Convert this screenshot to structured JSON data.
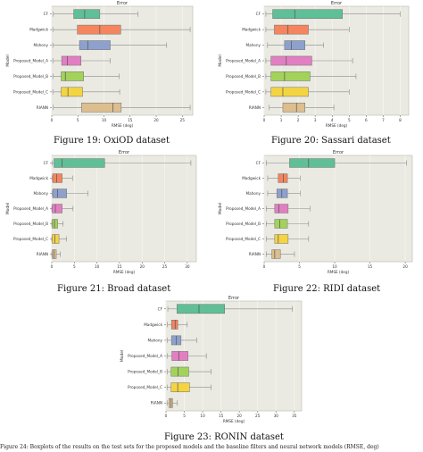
{
  "categories": [
    "CF",
    "Madgwick",
    "Mahony",
    "Proposed_Model_A",
    "Proposed_Model_B",
    "Proposed_Model_C",
    "RIANN"
  ],
  "colors": [
    "#5fbf96",
    "#f4855e",
    "#8ea0cc",
    "#e27fc3",
    "#a3d25a",
    "#f5d442",
    "#ddbe8e"
  ],
  "chart_data": [
    {
      "type": "box",
      "title": "Error",
      "xlabel": "RMSE (deg)",
      "ylabel": "Model",
      "xlim": [
        0,
        27
      ],
      "xticks": [
        0,
        5,
        10,
        15,
        20,
        25
      ],
      "series": [
        {
          "q1": 4.2,
          "median": 6.3,
          "q3": 9.2,
          "whisker_low": 0.3,
          "whisker_high": 16.5
        },
        {
          "q1": 4.9,
          "median": 9.2,
          "q3": 13.2,
          "whisker_low": 0.2,
          "whisker_high": 26.5
        },
        {
          "q1": 5.3,
          "median": 6.9,
          "q3": 11.2,
          "whisker_low": 0.2,
          "whisker_high": 22.0
        },
        {
          "q1": 1.9,
          "median": 3.0,
          "q3": 5.6,
          "whisker_low": 0.2,
          "whisker_high": 11.2
        },
        {
          "q1": 1.8,
          "median": 2.6,
          "q3": 6.1,
          "whisker_low": 0.2,
          "whisker_high": 12.9
        },
        {
          "q1": 1.8,
          "median": 3.1,
          "q3": 5.9,
          "whisker_low": 0.2,
          "whisker_high": 13.0
        },
        {
          "q1": 5.7,
          "median": 11.7,
          "q3": 13.3,
          "whisker_low": 0.3,
          "whisker_high": 26.5
        }
      ]
    },
    {
      "type": "box",
      "title": "Error",
      "xlabel": "RMSE (deg)",
      "ylabel": "Model",
      "xlim": [
        0,
        8.5
      ],
      "xticks": [
        0,
        1,
        2,
        3,
        4,
        5,
        6,
        7,
        8
      ],
      "series": [
        {
          "q1": 0.5,
          "median": 1.8,
          "q3": 4.6,
          "whisker_low": 0.1,
          "whisker_high": 8.0
        },
        {
          "q1": 0.6,
          "median": 1.4,
          "q3": 2.6,
          "whisker_low": 0.1,
          "whisker_high": 5.0
        },
        {
          "q1": 1.2,
          "median": 1.6,
          "q3": 2.4,
          "whisker_low": 0.2,
          "whisker_high": 3.5
        },
        {
          "q1": 0.4,
          "median": 1.3,
          "q3": 2.8,
          "whisker_low": 0.1,
          "whisker_high": 5.2
        },
        {
          "q1": 0.4,
          "median": 1.2,
          "q3": 2.7,
          "whisker_low": 0.1,
          "whisker_high": 5.4
        },
        {
          "q1": 0.4,
          "median": 1.1,
          "q3": 2.6,
          "whisker_low": 0.1,
          "whisker_high": 5.0
        },
        {
          "q1": 1.1,
          "median": 1.9,
          "q3": 2.4,
          "whisker_low": 0.3,
          "whisker_high": 4.1
        }
      ]
    },
    {
      "type": "box",
      "title": "Error",
      "xlabel": "RMSE (deg)",
      "ylabel": "Model",
      "xlim": [
        0,
        32
      ],
      "xticks": [
        0,
        5,
        10,
        15,
        20,
        25,
        30
      ],
      "series": [
        {
          "q1": 0.5,
          "median": 2.3,
          "q3": 11.7,
          "whisker_low": 0.1,
          "whisker_high": 30.8
        },
        {
          "q1": 0.2,
          "median": 1.1,
          "q3": 2.3,
          "whisker_low": 0.1,
          "whisker_high": 4.6
        },
        {
          "q1": 0.2,
          "median": 1.3,
          "q3": 3.3,
          "whisker_low": 0.1,
          "whisker_high": 8.0
        },
        {
          "q1": 0.1,
          "median": 0.8,
          "q3": 2.3,
          "whisker_low": 0.0,
          "whisker_high": 4.7
        },
        {
          "q1": 0.1,
          "median": 0.6,
          "q3": 1.3,
          "whisker_low": 0.0,
          "whisker_high": 2.5
        },
        {
          "q1": 0.1,
          "median": 0.7,
          "q3": 1.6,
          "whisker_low": 0.0,
          "whisker_high": 3.3
        },
        {
          "q1": 0.1,
          "median": 0.5,
          "q3": 1.0,
          "whisker_low": 0.0,
          "whisker_high": 1.9
        }
      ]
    },
    {
      "type": "box",
      "title": "Error",
      "xlabel": "RMSE (deg)",
      "ylabel": "Model",
      "xlim": [
        0,
        21
      ],
      "xticks": [
        0,
        5,
        10,
        15,
        20
      ],
      "series": [
        {
          "q1": 3.6,
          "median": 6.3,
          "q3": 10.0,
          "whisker_low": 0.3,
          "whisker_high": 20.2
        },
        {
          "q1": 2.0,
          "median": 2.7,
          "q3": 3.3,
          "whisker_low": 0.5,
          "whisker_high": 5.1
        },
        {
          "q1": 1.8,
          "median": 2.5,
          "q3": 3.3,
          "whisker_low": 0.5,
          "whisker_high": 5.1
        },
        {
          "q1": 1.5,
          "median": 2.1,
          "q3": 3.4,
          "whisker_low": 0.3,
          "whisker_high": 6.5
        },
        {
          "q1": 1.5,
          "median": 2.2,
          "q3": 3.3,
          "whisker_low": 0.3,
          "whisker_high": 6.3
        },
        {
          "q1": 1.5,
          "median": 2.0,
          "q3": 3.4,
          "whisker_low": 0.3,
          "whisker_high": 6.3
        },
        {
          "q1": 1.1,
          "median": 1.5,
          "q3": 2.3,
          "whisker_low": 0.3,
          "whisker_high": 4.3
        }
      ]
    },
    {
      "type": "box",
      "title": "Error",
      "xlabel": "RMSE (deg)",
      "ylabel": "Model",
      "xlim": [
        0,
        37
      ],
      "xticks": [
        0,
        5,
        10,
        15,
        20,
        25,
        30,
        35
      ],
      "series": [
        {
          "q1": 3.0,
          "median": 9.0,
          "q3": 16.0,
          "whisker_low": 0.5,
          "whisker_high": 34.5
        },
        {
          "q1": 1.5,
          "median": 2.5,
          "q3": 3.2,
          "whisker_low": 0.4,
          "whisker_high": 5.8
        },
        {
          "q1": 1.5,
          "median": 2.8,
          "q3": 4.1,
          "whisker_low": 0.3,
          "whisker_high": 8.4
        },
        {
          "q1": 1.6,
          "median": 3.5,
          "q3": 6.0,
          "whisker_low": 0.3,
          "whisker_high": 11.0
        },
        {
          "q1": 1.4,
          "median": 3.3,
          "q3": 6.2,
          "whisker_low": 0.3,
          "whisker_high": 12.3
        },
        {
          "q1": 1.4,
          "median": 3.2,
          "q3": 6.4,
          "whisker_low": 0.3,
          "whisker_high": 12.3
        },
        {
          "q1": 0.8,
          "median": 1.4,
          "q3": 1.8,
          "whisker_low": 0.3,
          "whisker_high": 3.1
        }
      ]
    }
  ],
  "captions": [
    "Figure 19: OxiOD dataset",
    "Figure 20: Sassari dataset",
    "Figure 21: Broad dataset",
    "Figure 22: RIDI dataset",
    "Figure 23: RONIN dataset"
  ],
  "footnote": "Figure 24: Boxplots of the results on the test sets for the proposed models and the baseline filters and neural network models (RMSE, deg)"
}
